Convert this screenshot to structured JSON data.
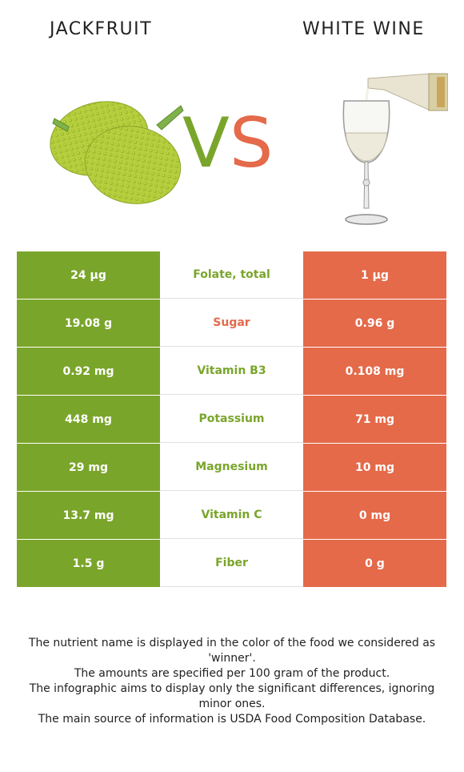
{
  "header": {
    "left_food": "JACKFRUIT",
    "right_food": "WHITE WINE",
    "vs_v": "V",
    "vs_s": "S"
  },
  "colors": {
    "winner_left": "#7aa52b",
    "winner_right": "#e46a4a"
  },
  "images": {
    "left": "jackfruit-image",
    "right": "white-wine-glass-image"
  },
  "rows": [
    {
      "left": "24 µg",
      "nutrient": "Folate, total",
      "right": "1 µg",
      "winner": "left"
    },
    {
      "left": "19.08 g",
      "nutrient": "Sugar",
      "right": "0.96 g",
      "winner": "right"
    },
    {
      "left": "0.92 mg",
      "nutrient": "Vitamin B3",
      "right": "0.108 mg",
      "winner": "left"
    },
    {
      "left": "448 mg",
      "nutrient": "Potassium",
      "right": "71 mg",
      "winner": "left"
    },
    {
      "left": "29 mg",
      "nutrient": "Magnesium",
      "right": "10 mg",
      "winner": "left"
    },
    {
      "left": "13.7 mg",
      "nutrient": "Vitamin C",
      "right": "0 mg",
      "winner": "left"
    },
    {
      "left": "1.5 g",
      "nutrient": "Fiber",
      "right": "0 g",
      "winner": "left"
    }
  ],
  "notes": [
    "The nutrient name is displayed in the color of the food we considered as 'winner'.",
    "The amounts are specified per 100 gram of the product.",
    "The infographic aims to display only the significant differences, ignoring minor ones.",
    "The main source of information is USDA Food Composition Database."
  ]
}
